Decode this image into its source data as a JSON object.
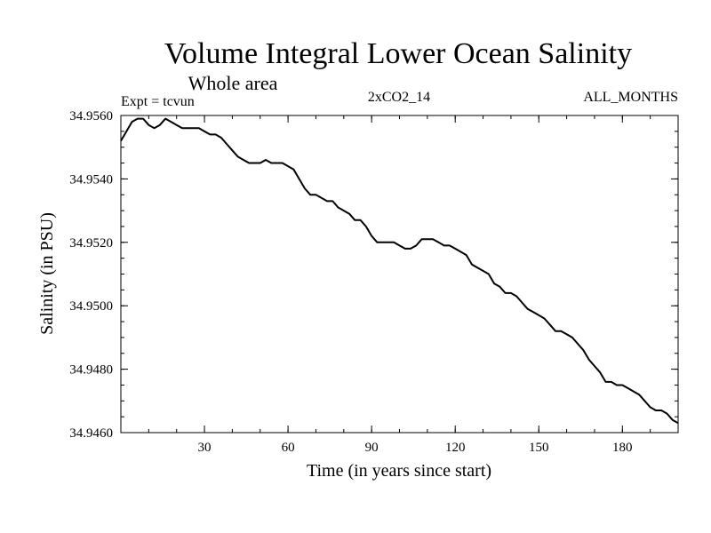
{
  "chart_data": {
    "type": "line",
    "title": "Volume Integral Lower Ocean Salinity",
    "subtitle": "Whole area",
    "experiment_label": "Expt = tcvun",
    "run_label": "2xCO2_14",
    "period_label": "ALL_MONTHS",
    "xlabel": "Time (in years since start)",
    "ylabel": "Salinity (in PSU)",
    "xlim": [
      0,
      200
    ],
    "ylim": [
      34.946,
      34.956
    ],
    "x_ticks": [
      {
        "value": 30,
        "label": "30"
      },
      {
        "value": 60,
        "label": "60"
      },
      {
        "value": 90,
        "label": "90"
      },
      {
        "value": 120,
        "label": "120"
      },
      {
        "value": 150,
        "label": "150"
      },
      {
        "value": 180,
        "label": "180"
      }
    ],
    "y_ticks": [
      {
        "value": 34.946,
        "label": "34.9460"
      },
      {
        "value": 34.948,
        "label": "34.9480"
      },
      {
        "value": 34.95,
        "label": "34.9500"
      },
      {
        "value": 34.952,
        "label": "34.9520"
      },
      {
        "value": 34.954,
        "label": "34.9540"
      },
      {
        "value": 34.956,
        "label": "34.9560"
      }
    ],
    "x_minor_step": 10,
    "y_minor_step": 0.0005,
    "grid": false,
    "line_color": "#000000",
    "series": [
      {
        "x": [
          0,
          2,
          4,
          6,
          8,
          10,
          12,
          14,
          16,
          18,
          20,
          22,
          24,
          26,
          28,
          30,
          32,
          34,
          36,
          38,
          40,
          42,
          44,
          46,
          48,
          50,
          52,
          54,
          56,
          58,
          60,
          62,
          64,
          66,
          68,
          70,
          72,
          74,
          76,
          78,
          80,
          82,
          84,
          86,
          88,
          90,
          92,
          94,
          96,
          98,
          100,
          102,
          104,
          106,
          108,
          110,
          112,
          114,
          116,
          118,
          120,
          122,
          124,
          126,
          128,
          130,
          132,
          134,
          136,
          138,
          140,
          142,
          144,
          146,
          148,
          150,
          152,
          154,
          156,
          158,
          160,
          162,
          164,
          166,
          168,
          170,
          172,
          174,
          176,
          178,
          180,
          182,
          184,
          186,
          188,
          190,
          192,
          194,
          196,
          198,
          200
        ],
        "values": [
          34.9552,
          34.9555,
          34.9558,
          34.9559,
          34.9559,
          34.9557,
          34.9556,
          34.9557,
          34.9559,
          34.9558,
          34.9557,
          34.9556,
          34.9556,
          34.9556,
          34.9556,
          34.9555,
          34.9554,
          34.9554,
          34.9553,
          34.9551,
          34.9549,
          34.9547,
          34.9546,
          34.9545,
          34.9545,
          34.9545,
          34.9546,
          34.9545,
          34.9545,
          34.9545,
          34.9544,
          34.9543,
          34.954,
          34.9537,
          34.9535,
          34.9535,
          34.9534,
          34.9533,
          34.9533,
          34.9531,
          34.953,
          34.9529,
          34.9527,
          34.9527,
          34.9525,
          34.9522,
          34.952,
          34.952,
          34.952,
          34.952,
          34.9519,
          34.9518,
          34.9518,
          34.9519,
          34.9521,
          34.9521,
          34.9521,
          34.952,
          34.9519,
          34.9519,
          34.9518,
          34.9517,
          34.9516,
          34.9513,
          34.9512,
          34.9511,
          34.951,
          34.9507,
          34.9506,
          34.9504,
          34.9504,
          34.9503,
          34.9501,
          34.9499,
          34.9498,
          34.9497,
          34.9496,
          34.9494,
          34.9492,
          34.9492,
          34.9491,
          34.949,
          34.9488,
          34.9486,
          34.9483,
          34.9481,
          34.9479,
          34.9476,
          34.9476,
          34.9475,
          34.9475,
          34.9474,
          34.9473,
          34.9472,
          34.947,
          34.9468,
          34.9467,
          34.9467,
          34.9466,
          34.9464,
          34.9463
        ]
      }
    ]
  }
}
